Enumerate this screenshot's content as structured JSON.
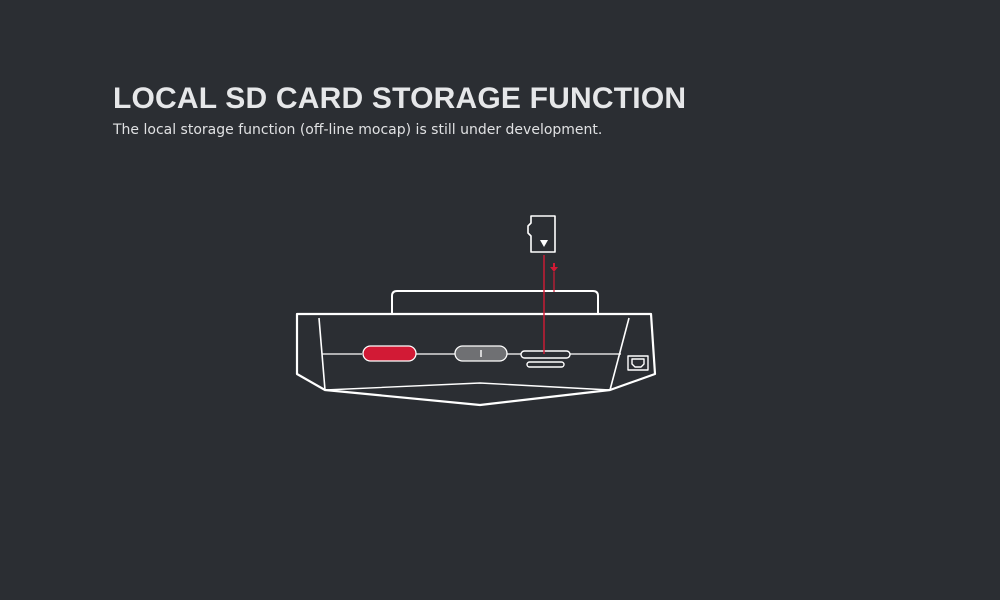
{
  "header": {
    "title": "LOCAL SD CARD STORAGE FUNCTION",
    "subtitle": "The local storage function (off-line mocap) is still under development."
  },
  "diagram": {
    "outline_color": "#ffffff",
    "accent_color": "#d21a35",
    "neutral_color": "#6f7073",
    "background_color": "#2b2e33",
    "parts": {
      "sd_card": "micro-sd-card-icon",
      "insert_direction": "down-arrow-icon",
      "power_button": "red-power-button",
      "function_button": "grey-function-button",
      "card_slot": "sd-card-slot",
      "usb_port": "usb-port-icon"
    }
  }
}
